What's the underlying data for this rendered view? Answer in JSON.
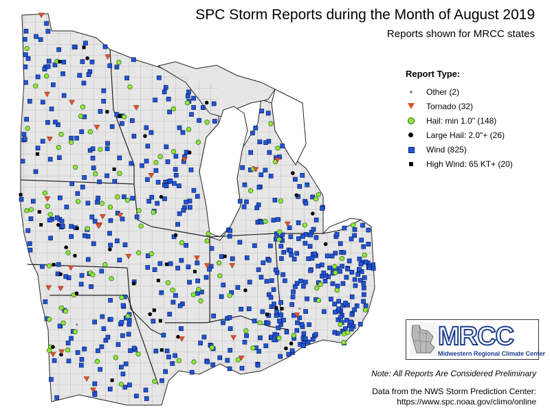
{
  "title": "SPC Storm Reports during the Month of August 2019",
  "subtitle": "Reports shown for MRCC states",
  "legend": {
    "title": "Report Type:",
    "items": [
      {
        "type": "other",
        "label": "Other (2)",
        "color": "#888888"
      },
      {
        "type": "tornado",
        "label": "Tornado (32)",
        "color": "#e0522a"
      },
      {
        "type": "hail",
        "label": "Hail: min 1.0\" (148)",
        "color": "#8ee83a"
      },
      {
        "type": "large-hail",
        "label": "Large Hail: 2.0\"+ (26)",
        "color": "#000000"
      },
      {
        "type": "wind",
        "label": "Wind (825)",
        "color": "#1f56d6"
      },
      {
        "type": "high-wind",
        "label": "High Wind: 65 KT+ (20)",
        "color": "#000000"
      }
    ]
  },
  "logo": {
    "text": "MRCC",
    "subtitle": "Midwestern Regional Climate Center"
  },
  "note": "Note: All Reports Are Considered Preliminary",
  "source": {
    "line1": "Data from the NWS Storm Prediction Center:",
    "line2": "https://www.spc.noaa.gov/climo/online"
  },
  "colors": {
    "land": "#e6e6e6",
    "water": "#ffffff",
    "county_lines": "#9a9a9a",
    "state_lines": "#222222"
  }
}
